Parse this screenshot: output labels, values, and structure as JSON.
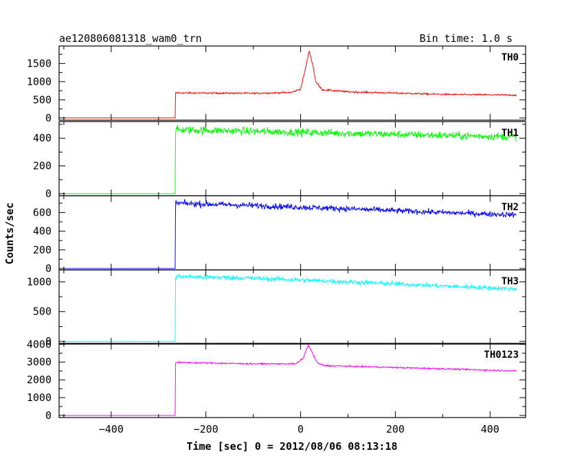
{
  "header": {
    "title": "ae120806081318_wam0_trn",
    "bin_time": "Bin time: 1.0 s"
  },
  "chart_data": {
    "type": "line",
    "title": "ae120806081318_wam0_trn",
    "subtitle": "Bin time: 1.0 s",
    "xlabel": "Time [sec] 0 = 2012/08/06 08:13:18",
    "ylabel": "Counts/sec",
    "xlim": [
      -510,
      475
    ],
    "x_ticks": [
      -400,
      -200,
      0,
      200,
      400
    ],
    "x_tick_labels": [
      "−400",
      "−200",
      "0",
      "200",
      "400"
    ],
    "x_data_range": [
      -500,
      455
    ],
    "grid": false,
    "panels": [
      {
        "name": "TH0",
        "color": "#ff0000",
        "ylim": [
          -60,
          1980
        ],
        "y_ticks": [
          0,
          500,
          1000,
          1500
        ],
        "y_tick_labels": [
          "0",
          "500",
          "1000",
          "1500"
        ],
        "baseline_before": 0,
        "step_time": -264,
        "profile": [
          [
            -264,
            690
          ],
          [
            -100,
            680
          ],
          [
            -20,
            700
          ],
          [
            0,
            800
          ],
          [
            10,
            1350
          ],
          [
            18,
            1850
          ],
          [
            25,
            1500
          ],
          [
            32,
            1000
          ],
          [
            45,
            780
          ],
          [
            100,
            720
          ],
          [
            300,
            650
          ],
          [
            455,
            630
          ]
        ],
        "noise": 22
      },
      {
        "name": "TH1",
        "color": "#00ff00",
        "ylim": [
          -15,
          520
        ],
        "y_ticks": [
          0,
          200,
          400
        ],
        "y_tick_labels": [
          "0",
          "200",
          "400"
        ],
        "baseline_before": 0,
        "step_time": -264,
        "profile": [
          [
            -264,
            460
          ],
          [
            -100,
            450
          ],
          [
            100,
            435
          ],
          [
            300,
            420
          ],
          [
            455,
            410
          ]
        ],
        "noise": 28
      },
      {
        "name": "TH2",
        "color": "#0000ff",
        "ylim": [
          -15,
          780
        ],
        "y_ticks": [
          0,
          200,
          400,
          600
        ],
        "y_tick_labels": [
          "0",
          "200",
          "400",
          "600"
        ],
        "baseline_before": 0,
        "step_time": -264,
        "profile": [
          [
            -264,
            700
          ],
          [
            -100,
            675
          ],
          [
            100,
            640
          ],
          [
            300,
            600
          ],
          [
            455,
            575
          ]
        ],
        "noise": 32
      },
      {
        "name": "TH3",
        "color": "#00ffff",
        "ylim": [
          -45,
          1200
        ],
        "y_ticks": [
          0,
          500,
          1000
        ],
        "y_tick_labels": [
          "0",
          "500",
          "1000"
        ],
        "baseline_before": 0,
        "step_time": -264,
        "profile": [
          [
            -264,
            1090
          ],
          [
            -100,
            1060
          ],
          [
            100,
            1000
          ],
          [
            300,
            930
          ],
          [
            455,
            880
          ]
        ],
        "noise": 40
      },
      {
        "name": "TH0123",
        "color": "#ff00ff",
        "ylim": [
          -120,
          4050
        ],
        "y_ticks": [
          0,
          1000,
          2000,
          3000,
          4000
        ],
        "y_tick_labels": [
          "0",
          "1000",
          "2000",
          "3000",
          "4000"
        ],
        "baseline_before": 0,
        "step_time": -264,
        "profile": [
          [
            -264,
            2980
          ],
          [
            -100,
            2900
          ],
          [
            -10,
            2900
          ],
          [
            5,
            3200
          ],
          [
            16,
            3950
          ],
          [
            25,
            3500
          ],
          [
            35,
            2950
          ],
          [
            50,
            2800
          ],
          [
            150,
            2730
          ],
          [
            300,
            2620
          ],
          [
            455,
            2500
          ]
        ],
        "noise": 45
      }
    ]
  }
}
